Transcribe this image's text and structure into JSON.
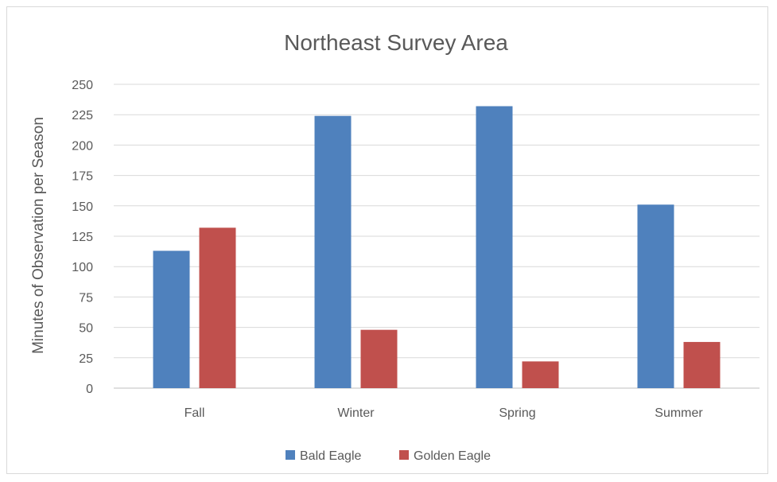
{
  "chart_data": {
    "type": "bar",
    "title": "Northeast Survey Area",
    "xlabel": "",
    "ylabel": "Minutes of Observation per Season",
    "categories": [
      "Fall",
      "Winter",
      "Spring",
      "Summer"
    ],
    "series": [
      {
        "name": "Bald Eagle",
        "color": "#4f81bd",
        "values": [
          113,
          224,
          232,
          151
        ]
      },
      {
        "name": "Golden Eagle",
        "color": "#c0504d",
        "values": [
          132,
          48,
          22,
          38
        ]
      }
    ],
    "ylim": [
      0,
      250
    ],
    "yticks": [
      0,
      25,
      50,
      75,
      100,
      125,
      150,
      175,
      200,
      225,
      250
    ],
    "grid": true,
    "legend_position": "bottom"
  }
}
